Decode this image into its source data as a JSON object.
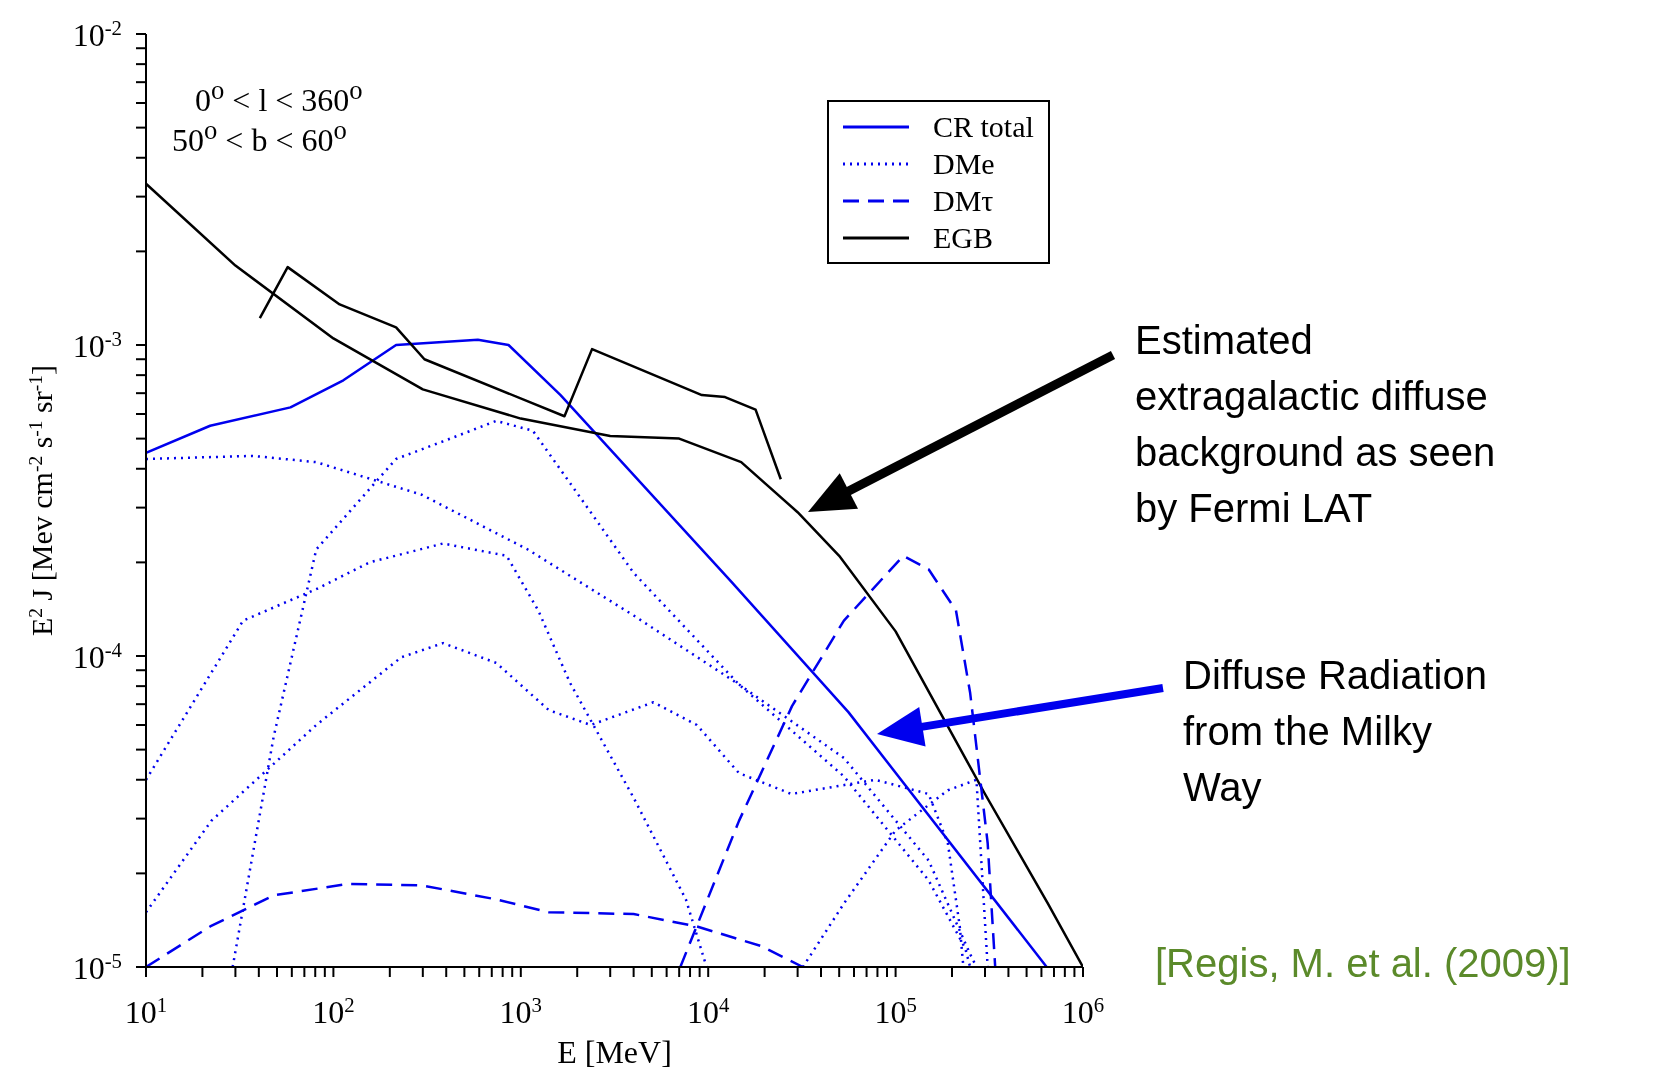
{
  "chart_data": {
    "type": "line",
    "xlabel": "E [MeV]",
    "ylabel": "E$^{2}$ J [Mev cm$^{-2}$ s$^{-1}$ sr$^{-1}$]",
    "log": "xy",
    "legend": "top right",
    "xlim": [
      10,
      1000000
    ],
    "ylim": [
      1e-05,
      0.01
    ],
    "xticks": [
      {
        "value": 10,
        "label": "10$^{1}$"
      },
      {
        "value": 20,
        "label": null
      },
      {
        "value": 30,
        "label": null
      },
      {
        "value": 40,
        "label": null
      },
      {
        "value": 50,
        "label": null
      },
      {
        "value": 60,
        "label": null
      },
      {
        "value": 70,
        "label": null
      },
      {
        "value": 80,
        "label": null
      },
      {
        "value": 90,
        "label": null
      },
      {
        "value": 100,
        "label": "10$^{2}$"
      },
      {
        "value": 200,
        "label": null
      },
      {
        "value": 300,
        "label": null
      },
      {
        "value": 400,
        "label": null
      },
      {
        "value": 500,
        "label": null
      },
      {
        "value": 600,
        "label": null
      },
      {
        "value": 700,
        "label": null
      },
      {
        "value": 800,
        "label": null
      },
      {
        "value": 900,
        "label": null
      },
      {
        "value": 1000,
        "label": "10$^{3}$"
      },
      {
        "value": 2000,
        "label": null
      },
      {
        "value": 3000,
        "label": null
      },
      {
        "value": 4000,
        "label": null
      },
      {
        "value": 5000,
        "label": null
      },
      {
        "value": 6000,
        "label": null
      },
      {
        "value": 7000,
        "label": null
      },
      {
        "value": 8000,
        "label": null
      },
      {
        "value": 9000,
        "label": null
      },
      {
        "value": 10000,
        "label": "10$^{4}$"
      },
      {
        "value": 20000,
        "label": null
      },
      {
        "value": 30000,
        "label": null
      },
      {
        "value": 40000,
        "label": null
      },
      {
        "value": 50000,
        "label": null
      },
      {
        "value": 60000,
        "label": null
      },
      {
        "value": 70000,
        "label": null
      },
      {
        "value": 80000,
        "label": null
      },
      {
        "value": 90000,
        "label": null
      },
      {
        "value": 100000,
        "label": "10$^{5}$"
      },
      {
        "value": 200000,
        "label": null
      },
      {
        "value": 300000,
        "label": null
      },
      {
        "value": 400000,
        "label": null
      },
      {
        "value": 500000,
        "label": null
      },
      {
        "value": 600000,
        "label": null
      },
      {
        "value": 700000,
        "label": null
      },
      {
        "value": 800000,
        "label": null
      },
      {
        "value": 900000,
        "label": null
      },
      {
        "value": 1000000,
        "label": "10$^{6}$"
      }
    ],
    "yticks": [
      {
        "value": 1e-05,
        "label": "10$^{-5}$"
      },
      {
        "value": 2e-05,
        "label": null
      },
      {
        "value": 3e-05,
        "label": null
      },
      {
        "value": 4e-05,
        "label": null
      },
      {
        "value": 5e-05,
        "label": null
      },
      {
        "value": 6e-05,
        "label": null
      },
      {
        "value": 7e-05,
        "label": null
      },
      {
        "value": 8e-05,
        "label": null
      },
      {
        "value": 9e-05,
        "label": null
      },
      {
        "value": 0.0001,
        "label": "10$^{-4}$"
      },
      {
        "value": 0.0002,
        "label": null
      },
      {
        "value": 0.0003,
        "label": null
      },
      {
        "value": 0.0004,
        "label": null
      },
      {
        "value": 0.0005,
        "label": null
      },
      {
        "value": 0.0006,
        "label": null
      },
      {
        "value": 0.0007,
        "label": null
      },
      {
        "value": 0.0008,
        "label": null
      },
      {
        "value": 0.0009,
        "label": null
      },
      {
        "value": 0.001,
        "label": "10$^{-3}$"
      },
      {
        "value": 0.002,
        "label": null
      },
      {
        "value": 0.003,
        "label": null
      },
      {
        "value": 0.004,
        "label": null
      },
      {
        "value": 0.005,
        "label": null
      },
      {
        "value": 0.006,
        "label": null
      },
      {
        "value": 0.007,
        "label": null
      },
      {
        "value": 0.008,
        "label": null
      },
      {
        "value": 0.009,
        "label": null
      },
      {
        "value": 0.01,
        "label": "10$^{-2}$"
      }
    ],
    "series": [
      {
        "name": "CR total",
        "color": "#0000ee",
        "line_style": "solid",
        "x": [
          10,
          22,
          59,
          113,
          216,
          590,
          860,
          1630,
          13200,
          56000,
          640000
        ],
        "values": [
          0.00045,
          0.00055,
          0.00063,
          0.00077,
          0.001,
          0.00104,
          0.001,
          0.00069,
          0.000174,
          6.6e-05,
          1e-05
        ]
      },
      {
        "name": "DMe",
        "color": "#0000ee",
        "line_style": "dotted",
        "x": [
          10,
          37,
          81,
          296,
          1090,
          4000,
          14600,
          53000,
          150000,
          250000,
          270000
        ],
        "values": [
          0.00043,
          0.00044,
          0.00042,
          0.00033,
          0.00022,
          0.000135,
          8.1e-05,
          4.7e-05,
          2.2e-05,
          1.1e-05,
          1e-05
        ]
      },
      {
        "name": "DMτ",
        "color": "#0000ee",
        "line_style": "dashed",
        "x": [
          10,
          22,
          48,
          120,
          296,
          740,
          1410,
          4000,
          8700,
          19000,
          32000
        ],
        "values": [
          1e-05,
          1.35e-05,
          1.7e-05,
          1.85e-05,
          1.83e-05,
          1.65e-05,
          1.5e-05,
          1.48e-05,
          1.35e-05,
          1.17e-05,
          1e-05
        ]
      },
      {
        "name": "EGB",
        "color": "#000000",
        "line_style": "solid",
        "x": [
          10,
          30,
          100,
          300,
          1000,
          3000,
          7000,
          15000,
          30000,
          50000,
          100000,
          300000,
          650000,
          1000000
        ],
        "values": [
          0.0033,
          0.0018,
          0.00105,
          0.00072,
          0.00058,
          0.00051,
          0.0005,
          0.00042,
          0.00029,
          0.00021,
          0.00012,
          3.6e-05,
          1.6e-05,
          1e-05
        ]
      },
      {
        "color": "#000000",
        "line_style": "solid",
        "x": [
          40.5,
          57,
          108,
          216,
          306,
          1710,
          2400,
          9250,
          12300,
          17900,
          24400
        ],
        "values": [
          0.00122,
          0.00178,
          0.00135,
          0.00114,
          0.0009,
          0.00059,
          0.00097,
          0.00069,
          0.00068,
          0.00062,
          0.00037
        ]
      },
      {
        "color": "#0000ee",
        "line_style": "dotted",
        "x": [
          10,
          33,
          81,
          156,
          385,
          840,
          1240,
          1830,
          4000,
          7600,
          9800
        ],
        "values": [
          4e-05,
          0.00013,
          0.000164,
          0.0002,
          0.00023,
          0.00021,
          0.00014,
          8.2e-05,
          3.5e-05,
          1.65e-05,
          1e-05
        ]
      },
      {
        "color": "#0000ee",
        "line_style": "dotted",
        "x": [
          29,
          48,
          81,
          216,
          385,
          740,
          1160,
          1830,
          4000,
          14600,
          53000,
          150000,
          235000,
          250000
        ],
        "values": [
          1e-05,
          5.5e-05,
          0.00022,
          0.00043,
          0.00049,
          0.00057,
          0.00053,
          0.00036,
          0.000185,
          8.1e-05,
          4.1e-05,
          1.9e-05,
          1.15e-05,
          1e-05
        ]
      },
      {
        "color": "#0000ee",
        "line_style": "dotted",
        "x": [
          10,
          22.3,
          81,
          230,
          385,
          740,
          1410,
          2360,
          5100,
          8700,
          14600,
          27800,
          78000,
          150000,
          190000,
          220000,
          230000
        ],
        "values": [
          1.5e-05,
          2.95e-05,
          6e-05,
          9.9e-05,
          0.00011,
          9.5e-05,
          6.7e-05,
          6e-05,
          7.1e-05,
          6e-05,
          4.2e-05,
          3.6e-05,
          4e-05,
          3.6e-05,
          2.5e-05,
          1.35e-05,
          1e-05
        ]
      },
      {
        "color": "#0000ee",
        "line_style": "dotted",
        "x": [
          32000,
          53000,
          100000,
          190000,
          270000,
          310000
        ],
        "values": [
          1e-05,
          1.6e-05,
          2.75e-05,
          3.7e-05,
          4e-05,
          1e-05
        ]
      },
      {
        "color": "#0000ee",
        "line_style": "dashed",
        "x": [
          7100,
          14600,
          28000,
          53000,
          110000,
          150000,
          210000,
          250000,
          310000,
          340000
        ],
        "values": [
          1e-05,
          2.95e-05,
          6.9e-05,
          0.00013,
          0.00021,
          0.00019,
          0.00014,
          7.6e-05,
          2.5e-05,
          1e-05
        ]
      }
    ],
    "annotations": [
      "0$^{o}$ < l < 360$^{o}$",
      "50$^{o}$ < b < 60$^{o}$",
      "Estimated extragalactic diffuse background as seen by Fermi LAT",
      "Diffuse Radiation from the Milky Way",
      "[Regis, M. et al. (2009)]"
    ]
  }
}
